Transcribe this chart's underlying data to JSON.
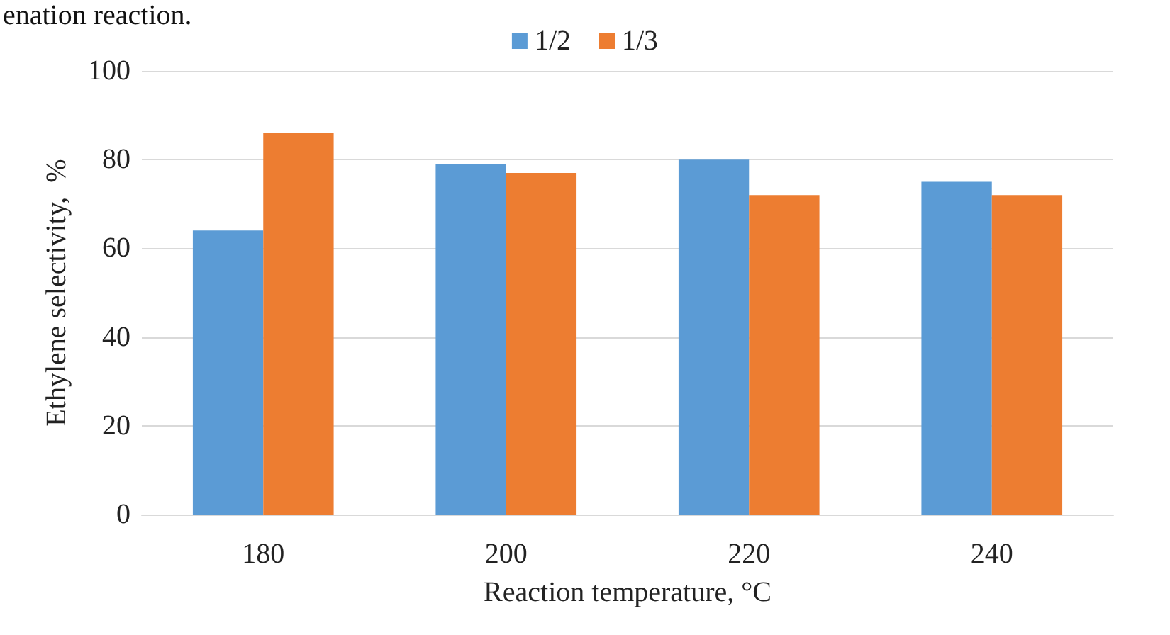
{
  "chart_data": {
    "type": "bar",
    "xlabel": "Reaction temperature, °C",
    "ylabel": "Ethylene selectivity,  %",
    "annotations": [
      "enation reaction."
    ],
    "categories": [
      "180",
      "200",
      "220",
      "240"
    ],
    "series": [
      {
        "name": "1/2",
        "color": "#5b9bd5",
        "values": [
          64,
          79,
          80,
          75
        ]
      },
      {
        "name": "1/3",
        "color": "#ed7d31",
        "values": [
          86,
          77,
          72,
          72
        ]
      }
    ],
    "ylim": [
      0,
      100
    ],
    "yticks": [
      0,
      20,
      40,
      60,
      80,
      100
    ],
    "grid": "y",
    "legend": "top"
  }
}
